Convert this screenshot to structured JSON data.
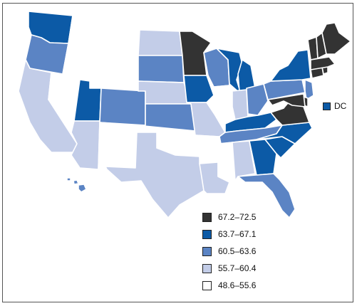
{
  "colors": {
    "class_1": "#333333",
    "class_2": "#0c5aa6",
    "class_3": "#5b84c4",
    "class_4": "#c3cde8",
    "class_5": "#ffffff"
  },
  "legend": [
    {
      "label": "67.2–72.5",
      "color_key": "class_1"
    },
    {
      "label": "63.7–67.1",
      "color_key": "class_2"
    },
    {
      "label": "60.5–63.6",
      "color_key": "class_3"
    },
    {
      "label": "55.7–60.4",
      "color_key": "class_4"
    },
    {
      "label": "48.6–55.6",
      "color_key": "class_5"
    }
  ],
  "dc": {
    "label": "DC",
    "color_key": "class_2"
  },
  "states": {
    "WA": "class_2",
    "OR": "class_3",
    "CA": "class_4",
    "NV": "class_5",
    "ID": "class_5",
    "MT": "class_5",
    "WY": "class_5",
    "UT": "class_2",
    "AZ": "class_4",
    "CO": "class_3",
    "NM": "class_5",
    "ND": "class_4",
    "SD": "class_3",
    "NE": "class_4",
    "KS": "class_3",
    "OK": "class_5",
    "TX": "class_4",
    "MN": "class_1",
    "IA": "class_2",
    "MO": "class_4",
    "AR": "class_5",
    "LA": "class_4",
    "WI": "class_3",
    "IL": "class_5",
    "MI": "class_2",
    "IN": "class_4",
    "OH": "class_3",
    "KY": "class_2",
    "TN": "class_3",
    "MS": "class_5",
    "AL": "class_4",
    "GA": "class_2",
    "FL": "class_3",
    "SC": "class_2",
    "NC": "class_2",
    "VA": "class_1",
    "WV": "class_5",
    "PA": "class_3",
    "NY": "class_2",
    "NJ": "class_3",
    "DE": "class_1",
    "MD": "class_1",
    "CT": "class_1",
    "RI": "class_1",
    "MA": "class_1",
    "VT": "class_1",
    "NH": "class_1",
    "ME": "class_1",
    "AK": "class_5",
    "HI": "class_3"
  }
}
